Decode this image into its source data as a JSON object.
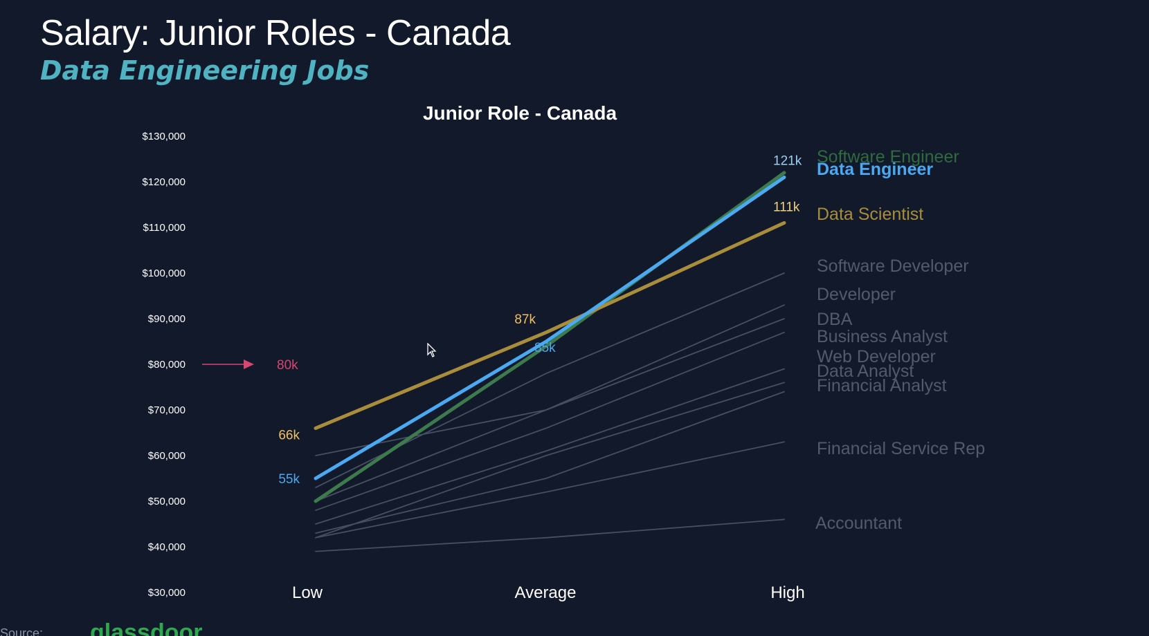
{
  "slide": {
    "title": "Salary: Junior Roles - Canada",
    "subtitle": "Data Engineering Jobs",
    "source_label": "Source:",
    "source_name": "glassdoor"
  },
  "colors": {
    "background": "#11192b",
    "subtitle": "#4fb3c2",
    "highlight_arrow": "#d9466f",
    "software_engineer": "#3d7a4c",
    "data_engineer": "#4aa9f0",
    "data_scientist": "#a98d3a",
    "other_roles": "#474f62"
  },
  "chart_data": {
    "type": "line",
    "title": "Junior Role - Canada",
    "xlabel": "",
    "ylabel": "",
    "categories": [
      "Low",
      "Average",
      "High"
    ],
    "ylim": [
      30000,
      130000
    ],
    "yticks": [
      {
        "value": 130000,
        "label": "$130,000"
      },
      {
        "value": 120000,
        "label": "$120,000"
      },
      {
        "value": 110000,
        "label": "$110,000"
      },
      {
        "value": 100000,
        "label": "$100,000"
      },
      {
        "value": 90000,
        "label": "$90,000"
      },
      {
        "value": 80000,
        "label": "$80,000"
      },
      {
        "value": 70000,
        "label": "$70,000"
      },
      {
        "value": 60000,
        "label": "$60,000"
      },
      {
        "value": 50000,
        "label": "$50,000"
      },
      {
        "value": 40000,
        "label": "$40,000"
      },
      {
        "value": 30000,
        "label": "$30,000"
      }
    ],
    "grid": false,
    "legend": "right (direct labels at line ends)",
    "series": [
      {
        "name": "Accountant",
        "values": [
          39000,
          42000,
          46000
        ],
        "color": "#474f62",
        "emphasis": false
      },
      {
        "name": "Financial Service Rep",
        "values": [
          42000,
          52000,
          63000
        ],
        "color": "#474f62",
        "emphasis": false
      },
      {
        "name": "Financial Analyst",
        "values": [
          43000,
          55000,
          74000
        ],
        "color": "#474f62",
        "emphasis": false
      },
      {
        "name": "Data Analyst",
        "values": [
          45000,
          61000,
          79000
        ],
        "color": "#474f62",
        "emphasis": false
      },
      {
        "name": "Web Developer",
        "values": [
          42000,
          60000,
          76000
        ],
        "color": "#474f62",
        "emphasis": false
      },
      {
        "name": "Business Analyst",
        "values": [
          48000,
          66000,
          87000
        ],
        "color": "#474f62",
        "emphasis": false
      },
      {
        "name": "DBA",
        "values": [
          60000,
          70000,
          90000
        ],
        "color": "#474f62",
        "emphasis": false
      },
      {
        "name": "Developer",
        "values": [
          50000,
          70000,
          93000
        ],
        "color": "#474f62",
        "emphasis": false
      },
      {
        "name": "Software Developer",
        "values": [
          53000,
          78000,
          100000
        ],
        "color": "#474f62",
        "emphasis": false
      },
      {
        "name": "Software Engineer",
        "values": [
          50000,
          84000,
          122000
        ],
        "color": "#3d7a4c",
        "emphasis": true
      },
      {
        "name": "Data Scientist",
        "values": [
          66000,
          87000,
          111000
        ],
        "color": "#a98d3a",
        "emphasis": true
      },
      {
        "name": "Data Engineer",
        "values": [
          55000,
          85000,
          121000
        ],
        "color": "#4aa9f0",
        "emphasis": true
      }
    ],
    "end_labels": [
      {
        "text": "Software Engineer",
        "color": "#2f6b3d",
        "bold": false
      },
      {
        "text": "Data Engineer",
        "color": "#4aa9f0",
        "bold": true
      },
      {
        "text": "Data Scientist",
        "color": "#a98d3a",
        "bold": false
      },
      {
        "text": "Software Developer",
        "color": "#525a6c",
        "bold": false
      },
      {
        "text": "Developer",
        "color": "#525a6c",
        "bold": false
      },
      {
        "text": "DBA",
        "color": "#525a6c",
        "bold": false
      },
      {
        "text": "Business Analyst",
        "color": "#525a6c",
        "bold": false
      },
      {
        "text": "Web Developer",
        "color": "#525a6c",
        "bold": false
      },
      {
        "text": "Data Analyst",
        "color": "#525a6c",
        "bold": false
      },
      {
        "text": "Financial Analyst",
        "color": "#525a6c",
        "bold": false
      },
      {
        "text": "Financial Service Rep",
        "color": "#525a6c",
        "bold": false
      },
      {
        "text": "Accountant",
        "color": "#525a6c",
        "bold": false
      }
    ],
    "annotations": [
      {
        "text": "121k",
        "series": "Data Engineer",
        "point": 2,
        "color": "#9ccff5"
      },
      {
        "text": "111k",
        "series": "Data Scientist",
        "point": 2,
        "color": "#f0d27a"
      },
      {
        "text": "87k",
        "series": "Data Scientist",
        "point": 1,
        "color": "#f0c060"
      },
      {
        "text": "85k",
        "series": "Data Engineer",
        "point": 1,
        "color": "#4aa9f0"
      },
      {
        "text": "66k",
        "series": "Data Scientist",
        "point": 0,
        "color": "#f0c060"
      },
      {
        "text": "55k",
        "series": "Data Engineer",
        "point": 0,
        "color": "#4aa9f0"
      }
    ],
    "reference_marker": {
      "text": "80k",
      "value": 80000,
      "color": "#d9466f"
    }
  }
}
